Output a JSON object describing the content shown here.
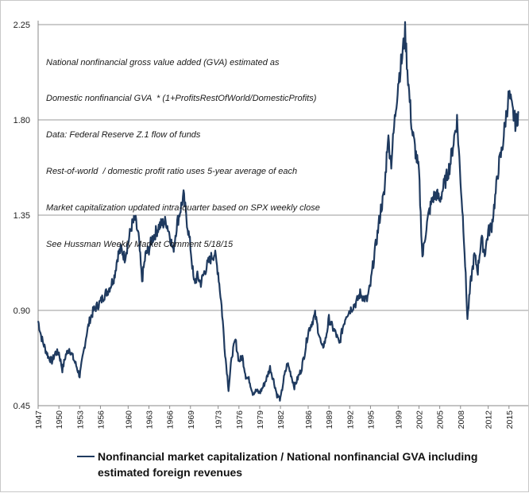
{
  "chart_data": {
    "type": "line",
    "title": "",
    "xlabel": "",
    "ylabel": "",
    "ylim": [
      0.45,
      2.25
    ],
    "yticks": [
      "0.45",
      "0.90",
      "1.35",
      "1.80",
      "2.25"
    ],
    "xlim": [
      1947,
      2016.4
    ],
    "xticks": [
      "1947",
      "1950",
      "1953",
      "1956",
      "1960",
      "1963",
      "1966",
      "1969",
      "1973",
      "1976",
      "1979",
      "1982",
      "1986",
      "1989",
      "1992",
      "1995",
      "1999",
      "2002",
      "2005",
      "2008",
      "2012",
      "2015"
    ],
    "grid": "horizontal",
    "legend_position": "bottom",
    "annotations": [
      "National nonfinancial gross value added (GVA) estimated as",
      "Domestic nonfinancial GVA  * (1+ProfitsRestOfWorld/DomesticProfits)",
      "Data: Federal Reserve Z.1 flow of funds",
      "Rest-of-world  / domestic profit ratio uses 5-year average of each",
      "Market capitalization updated intra-quarter based on SPX weekly close",
      "See Hussman Weekly Market Comment 5/18/15"
    ],
    "series": [
      {
        "name": "Nonfinancial market capitalization / National nonfinancial GVA including estimated foreign revenues",
        "color": "#1f3a5f",
        "x": [
          1947.0,
          1947.5,
          1948.0,
          1948.5,
          1949.0,
          1949.5,
          1950.0,
          1950.5,
          1951.0,
          1951.5,
          1952.0,
          1952.5,
          1953.0,
          1953.5,
          1954.0,
          1954.5,
          1955.0,
          1955.5,
          1956.0,
          1956.5,
          1957.0,
          1957.5,
          1958.0,
          1958.5,
          1959.0,
          1959.5,
          1960.0,
          1960.5,
          1961.0,
          1961.5,
          1962.0,
          1962.5,
          1963.0,
          1963.5,
          1964.0,
          1964.5,
          1965.0,
          1965.5,
          1966.0,
          1966.5,
          1967.0,
          1967.5,
          1968.0,
          1968.5,
          1969.0,
          1969.5,
          1970.0,
          1970.5,
          1971.0,
          1971.5,
          1972.0,
          1972.5,
          1973.0,
          1973.5,
          1974.0,
          1974.5,
          1975.0,
          1975.5,
          1976.0,
          1976.5,
          1977.0,
          1977.5,
          1978.0,
          1978.5,
          1979.0,
          1979.5,
          1980.0,
          1980.5,
          1981.0,
          1981.5,
          1982.0,
          1982.5,
          1983.0,
          1983.5,
          1984.0,
          1984.5,
          1985.0,
          1985.5,
          1986.0,
          1986.5,
          1987.0,
          1987.5,
          1988.0,
          1988.5,
          1989.0,
          1989.5,
          1990.0,
          1990.5,
          1991.0,
          1991.5,
          1992.0,
          1992.5,
          1993.0,
          1993.5,
          1994.0,
          1994.5,
          1995.0,
          1995.5,
          1996.0,
          1996.5,
          1997.0,
          1997.5,
          1998.0,
          1998.5,
          1999.0,
          1999.5,
          2000.0,
          2000.5,
          2001.0,
          2001.5,
          2002.0,
          2002.5,
          2003.0,
          2003.5,
          2004.0,
          2004.5,
          2005.0,
          2005.5,
          2006.0,
          2006.5,
          2007.0,
          2007.5,
          2008.0,
          2008.5,
          2009.0,
          2009.5,
          2010.0,
          2010.5,
          2011.0,
          2011.5,
          2012.0,
          2012.5,
          2013.0,
          2013.5,
          2014.0,
          2014.5,
          2015.0,
          2015.5,
          2016.0,
          2016.4
        ],
        "values": [
          0.85,
          0.77,
          0.72,
          0.68,
          0.66,
          0.7,
          0.7,
          0.62,
          0.69,
          0.72,
          0.68,
          0.64,
          0.59,
          0.69,
          0.79,
          0.86,
          0.9,
          0.92,
          0.94,
          0.97,
          0.99,
          1.02,
          1.06,
          1.16,
          1.19,
          1.15,
          1.22,
          1.3,
          1.33,
          1.25,
          1.04,
          1.16,
          1.19,
          1.24,
          1.27,
          1.3,
          1.31,
          1.32,
          1.26,
          1.18,
          1.3,
          1.37,
          1.44,
          1.32,
          1.2,
          1.03,
          1.06,
          1.03,
          1.08,
          1.12,
          1.15,
          1.17,
          1.08,
          0.92,
          0.7,
          0.53,
          0.69,
          0.76,
          0.66,
          0.68,
          0.59,
          0.57,
          0.51,
          0.52,
          0.51,
          0.54,
          0.58,
          0.63,
          0.57,
          0.5,
          0.48,
          0.58,
          0.65,
          0.6,
          0.54,
          0.58,
          0.62,
          0.7,
          0.8,
          0.84,
          0.88,
          0.8,
          0.72,
          0.76,
          0.86,
          0.82,
          0.79,
          0.74,
          0.82,
          0.88,
          0.9,
          0.92,
          0.94,
          0.98,
          0.96,
          0.95,
          1.02,
          1.15,
          1.26,
          1.38,
          1.45,
          1.72,
          1.6,
          1.8,
          1.98,
          2.08,
          2.21,
          1.96,
          1.75,
          1.65,
          1.55,
          1.15,
          1.28,
          1.37,
          1.43,
          1.45,
          1.42,
          1.48,
          1.53,
          1.59,
          1.7,
          1.8,
          1.52,
          1.25,
          0.86,
          1.04,
          1.16,
          1.09,
          1.24,
          1.17,
          1.27,
          1.3,
          1.43,
          1.58,
          1.66,
          1.8,
          1.92,
          1.84,
          1.78,
          1.84
        ]
      }
    ]
  },
  "legend": {
    "label": "Nonfinancial market capitalization / National nonfinancial GVA including estimated foreign revenues"
  }
}
